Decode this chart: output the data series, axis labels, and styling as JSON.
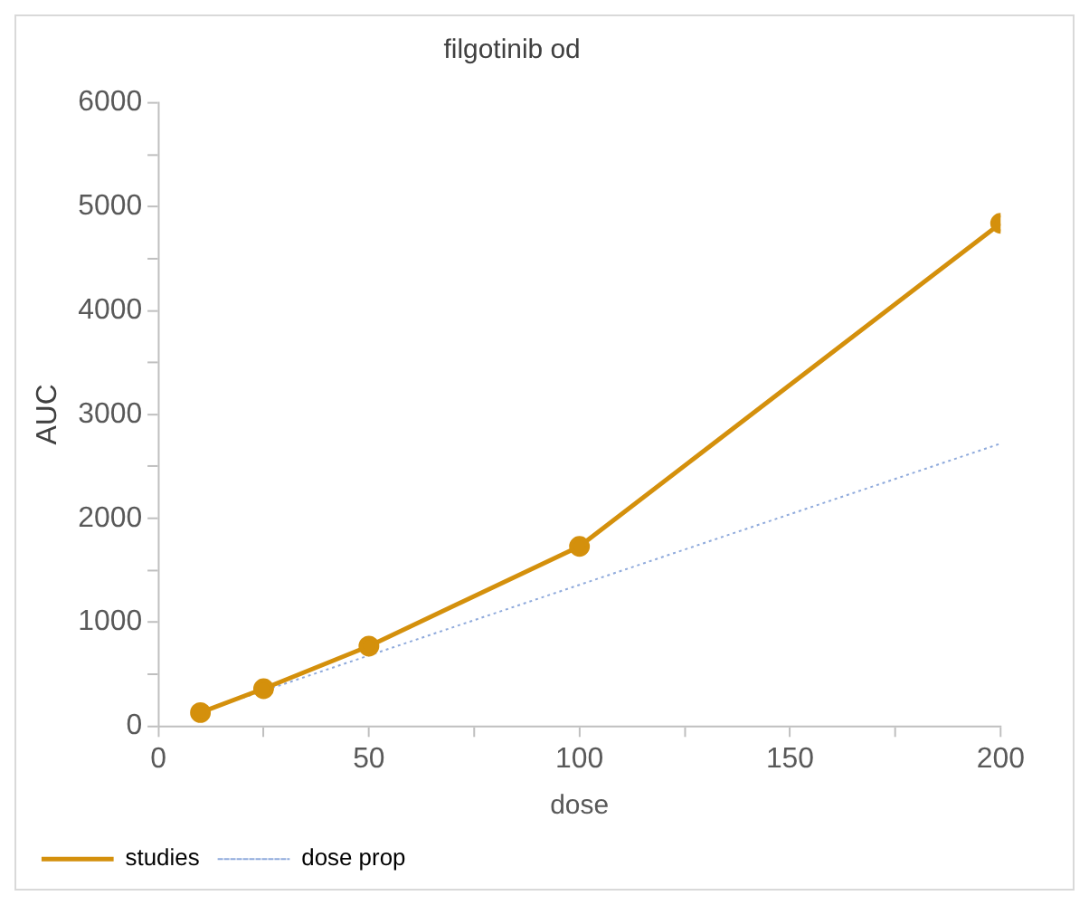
{
  "chart_data": {
    "type": "line",
    "title": "filgotinib od",
    "xlabel": "dose",
    "ylabel": "AUC",
    "xlim": [
      0,
      200
    ],
    "xticks": [
      0,
      {
        "value": 25,
        "label": null
      },
      50,
      {
        "value": 75,
        "label": null
      },
      100,
      {
        "value": 125,
        "label": null
      },
      150,
      {
        "value": 175,
        "label": null
      },
      200
    ],
    "ylim": [
      0,
      6000
    ],
    "yticks": [
      0,
      {
        "value": 500,
        "label": null
      },
      1000,
      {
        "value": 1500,
        "label": null
      },
      2000,
      {
        "value": 2500,
        "label": null
      },
      3000,
      {
        "value": 3500,
        "label": null
      },
      4000,
      {
        "value": 4500,
        "label": null
      },
      5000,
      {
        "value": 5500,
        "label": null
      },
      6000
    ],
    "grid": false,
    "legend": "bottom",
    "series": [
      {
        "name": "studies",
        "color": "#d4900c",
        "x": [
          10,
          25,
          50,
          100,
          200
        ],
        "values": [
          130,
          360,
          770,
          1730,
          4840
        ],
        "marker": "circle",
        "line_style": "solid"
      },
      {
        "name": "dose prop",
        "color": "#8faadc",
        "x": [
          10,
          25,
          50,
          100,
          200
        ],
        "values": [
          136,
          340,
          680,
          1360,
          2720
        ],
        "marker": "none",
        "line_style": "dotted"
      }
    ]
  }
}
